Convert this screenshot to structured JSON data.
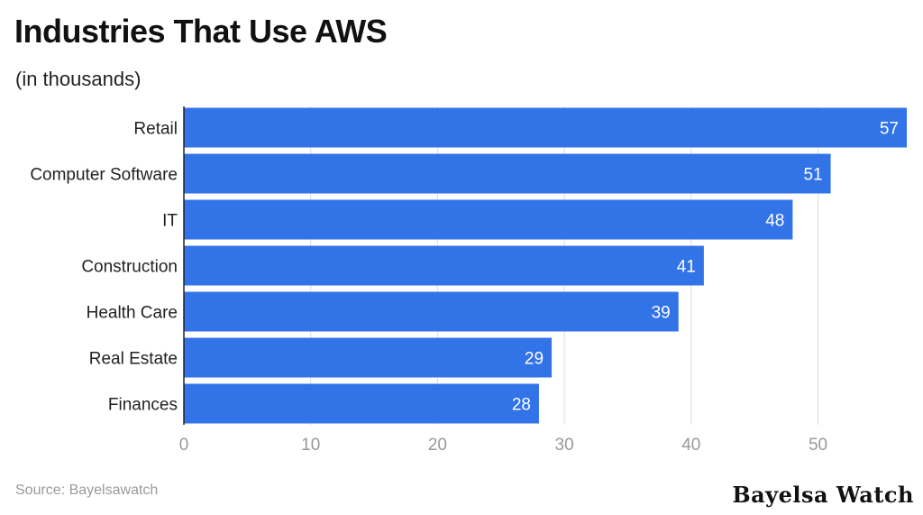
{
  "title": "Industries That Use AWS",
  "subtitle": "(in thousands)",
  "source": "Source: Bayelsawatch",
  "brand": "Bayelsa Watch",
  "colors": {
    "bar": "#3373e8",
    "grid": "#dddddd",
    "tick": "#999999",
    "axis": "#222222",
    "label": "#222222",
    "value": "#ffffff"
  },
  "chart_data": {
    "type": "bar",
    "orientation": "horizontal",
    "categories": [
      "Retail",
      "Computer Software",
      "IT",
      "Construction",
      "Health Care",
      "Real Estate",
      "Finances"
    ],
    "values": [
      57,
      51,
      48,
      41,
      39,
      29,
      28
    ],
    "xlim": [
      0,
      57
    ],
    "xticks": [
      0,
      10,
      20,
      30,
      40,
      50
    ],
    "grid": true,
    "data_labels": true
  }
}
